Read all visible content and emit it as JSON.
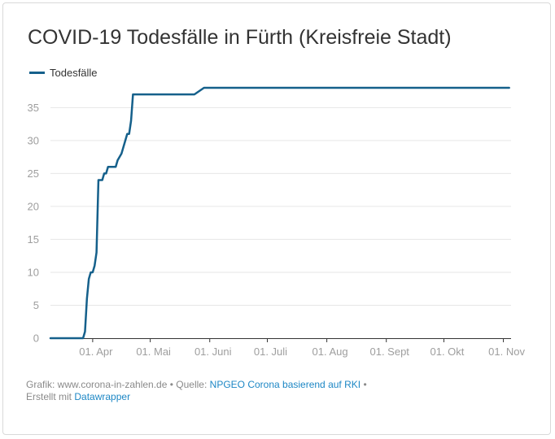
{
  "title": "COVID-19 Todesfälle in Fürth (Kreisfreie Stadt)",
  "legend": {
    "label": "Todesfälle"
  },
  "colors": {
    "line": "#15608b",
    "grid": "#e6e6e6",
    "axis": "#333333",
    "tick": "#9e9e9e",
    "link": "#1d87c5"
  },
  "footer": {
    "grafik_prefix": "Grafik: www.corona-in-zahlen.de • Quelle:",
    "source_link": "NPGEO Corona basierend auf RKI",
    "source_suffix": "•",
    "created_prefix": "Erstellt mit",
    "tool_link": "Datawrapper"
  },
  "chart_data": {
    "type": "line",
    "title": "COVID-19 Todesfälle in Fürth (Kreisfreie Stadt)",
    "xlabel": "",
    "ylabel": "",
    "ylim": [
      0,
      38
    ],
    "xlim": [
      "2020-03-10",
      "2020-11-05"
    ],
    "yticks": [
      0,
      5,
      10,
      15,
      20,
      25,
      30,
      35
    ],
    "xticks": [
      {
        "date": "2020-04-01",
        "label": "01. Apr"
      },
      {
        "date": "2020-05-01",
        "label": "01. Mai"
      },
      {
        "date": "2020-06-01",
        "label": "01. Juni"
      },
      {
        "date": "2020-07-01",
        "label": "01. Juli"
      },
      {
        "date": "2020-08-01",
        "label": "01. Aug"
      },
      {
        "date": "2020-09-01",
        "label": "01. Sept"
      },
      {
        "date": "2020-10-01",
        "label": "01. Okt"
      },
      {
        "date": "2020-11-01",
        "label": "01. Nov"
      }
    ],
    "grid": true,
    "legend_position": "top-left",
    "series": [
      {
        "name": "Todesfälle",
        "points": [
          [
            "2020-03-10",
            0
          ],
          [
            "2020-03-27",
            0
          ],
          [
            "2020-03-28",
            1
          ],
          [
            "2020-03-29",
            6
          ],
          [
            "2020-03-30",
            9
          ],
          [
            "2020-03-31",
            10
          ],
          [
            "2020-04-01",
            10
          ],
          [
            "2020-04-02",
            11
          ],
          [
            "2020-04-03",
            13
          ],
          [
            "2020-04-04",
            24
          ],
          [
            "2020-04-06",
            24
          ],
          [
            "2020-04-07",
            25
          ],
          [
            "2020-04-08",
            25
          ],
          [
            "2020-04-09",
            26
          ],
          [
            "2020-04-13",
            26
          ],
          [
            "2020-04-14",
            27
          ],
          [
            "2020-04-16",
            28
          ],
          [
            "2020-04-18",
            30
          ],
          [
            "2020-04-19",
            31
          ],
          [
            "2020-04-20",
            31
          ],
          [
            "2020-04-21",
            33
          ],
          [
            "2020-04-22",
            37
          ],
          [
            "2020-05-24",
            37
          ],
          [
            "2020-05-29",
            38
          ],
          [
            "2020-11-04",
            38
          ]
        ]
      }
    ]
  }
}
